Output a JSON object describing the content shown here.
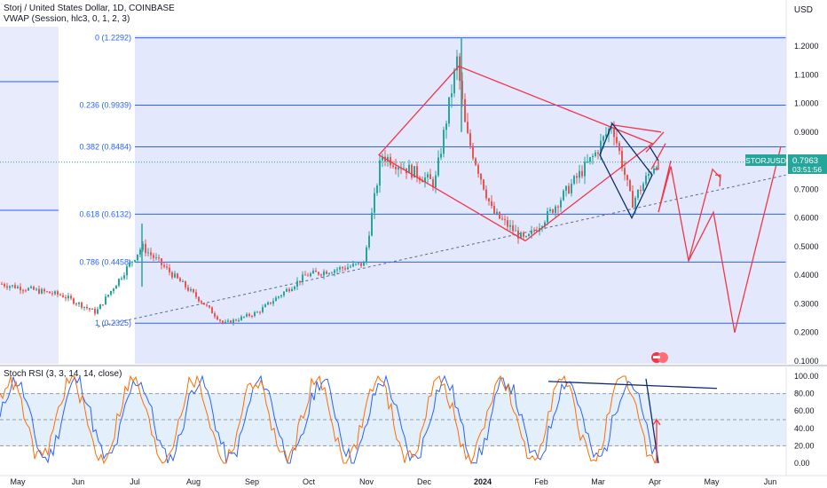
{
  "header": {
    "title": "Storj / United States Dollar, 1D, COINBASE",
    "vwap": "VWAP (Session, hlc3, 0, 1, 2, 3)",
    "currency": "USD",
    "stoch_label": "Stoch RSI (3, 3, 14, 14, close)"
  },
  "price_badge": {
    "symbol": "STORJUSD",
    "price": "0.7963",
    "countdown": "03:51:56"
  },
  "colors": {
    "candle_up": "#26a69a",
    "candle_down": "#ef5350",
    "fib": "#2962ff",
    "drawing_red": "#f23645",
    "drawing_blue": "#0d2c6e",
    "band_fill": "#e3e8fd"
  },
  "chart_data": [
    {
      "type": "candlestick",
      "title": "Storj / United States Dollar, 1D, COINBASE",
      "y_axis": {
        "ticks": [
          "1.2000",
          "1.1000",
          "1.0000",
          "0.9000",
          "0.8000",
          "0.7000",
          "0.6000",
          "0.5000",
          "0.4000",
          "0.3000",
          "0.2000",
          "0.1000"
        ],
        "range": [
          0.1,
          1.3
        ]
      },
      "x_axis": {
        "ticks": [
          "May",
          "Jun",
          "Jul",
          "Aug",
          "Sep",
          "Oct",
          "Nov",
          "Dec",
          "2024",
          "Feb",
          "Mar",
          "Apr",
          "May",
          "Jun"
        ]
      },
      "fib_levels": [
        {
          "label": "0 (1.2292)",
          "value": 1.2292
        },
        {
          "label": "0.236 (0.9939)",
          "value": 0.9939
        },
        {
          "label": "0.382 (0.8484)",
          "value": 0.8484
        },
        {
          "label": "0.618 (0.6132)",
          "value": 0.6132
        },
        {
          "label": "0.786 (0.4458)",
          "value": 0.4458
        },
        {
          "label": "1 (0.2325)",
          "value": 0.2325
        }
      ],
      "last_price": 0.7963,
      "price_path": [
        [
          "May",
          0.37
        ],
        [
          "Jun",
          0.33
        ],
        [
          "Jul",
          0.27
        ],
        [
          "Jul",
          0.5
        ],
        [
          "Aug",
          0.3
        ],
        [
          "Sep",
          0.23
        ],
        [
          "Sep",
          0.27
        ],
        [
          "Oct",
          0.4
        ],
        [
          "Nov",
          0.44
        ],
        [
          "Nov",
          0.82
        ],
        [
          "Dec",
          0.72
        ],
        [
          "Dec",
          1.15
        ],
        [
          "Dec",
          0.9
        ],
        [
          "2024",
          0.62
        ],
        [
          "Feb",
          0.52
        ],
        [
          "Feb",
          0.62
        ],
        [
          "Mar",
          0.82
        ],
        [
          "Mar",
          0.93
        ],
        [
          "Mar",
          0.65
        ],
        [
          "Apr",
          0.8
        ]
      ],
      "projection": [
        0.8,
        0.62,
        0.78,
        0.45,
        0.62,
        0.2,
        0.85
      ]
    },
    {
      "type": "line",
      "title": "Stoch RSI (3, 3, 14, 14, close)",
      "y_axis": {
        "ticks": [
          "100.00",
          "80.00",
          "60.00",
          "40.00",
          "20.00",
          "0.00"
        ],
        "range": [
          0,
          100
        ],
        "bands": [
          20,
          50,
          80
        ]
      },
      "series": [
        {
          "color": "#2962ff"
        },
        {
          "color": "#ff6d00"
        }
      ]
    }
  ]
}
